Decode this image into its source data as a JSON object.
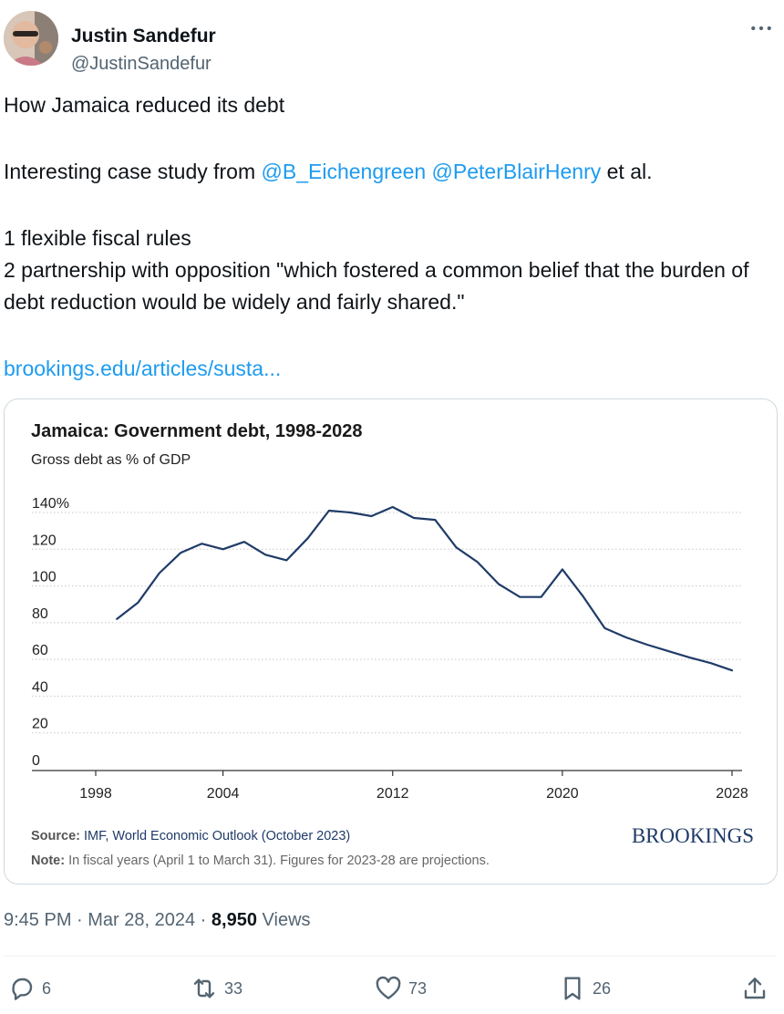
{
  "author": {
    "display_name": "Justin Sandefur",
    "handle": "@JustinSandefur"
  },
  "tweet": {
    "line1": "How Jamaica reduced its debt",
    "line2_prefix": "Interesting case study from ",
    "mention1": "@B_Eichengreen",
    "mention2": "@PeterBlairHenry",
    "line2_suffix": " et al.",
    "point1": "1 flexible fiscal rules",
    "point2": "2 partnership with opposition \"which fostered a common belief that the burden of debt reduction would be widely and fairly shared.\"",
    "link": "brookings.edu/articles/susta..."
  },
  "card": {
    "source_label": "Source:",
    "source_text": "IMF, World Economic Outlook (October 2023)",
    "note_label": "Note:",
    "note_text": "In fiscal years (April 1 to March 31). Figures for 2023-28 are projections.",
    "brand": "BROOKINGS"
  },
  "chart_data": {
    "type": "line",
    "title": "Jamaica: Government debt, 1998-2028",
    "subtitle": "Gross debt as % of GDP",
    "xlabel": "",
    "ylabel": "",
    "xlim": [
      1998,
      2028
    ],
    "ylim": [
      0,
      140
    ],
    "x_ticks": [
      "1998",
      "2004",
      "2012",
      "2020",
      "2028"
    ],
    "y_ticks": [
      "0",
      "20",
      "40",
      "60",
      "80",
      "100",
      "120",
      "140%"
    ],
    "grid": true,
    "color": "#1f3b68",
    "series": [
      {
        "x": [
          1999,
          2000,
          2001,
          2002,
          2003,
          2004,
          2005,
          2006,
          2007,
          2008,
          2009,
          2010,
          2011,
          2012,
          2013,
          2014,
          2015,
          2016,
          2017,
          2018,
          2019,
          2020,
          2021,
          2022,
          2023,
          2024,
          2025,
          2026,
          2027,
          2028
        ],
        "values": [
          82,
          91,
          107,
          118,
          123,
          120,
          124,
          117,
          114,
          126,
          141,
          140,
          138,
          143,
          137,
          136,
          121,
          113,
          101,
          94,
          94,
          109,
          94,
          77,
          72,
          68,
          64.5,
          61,
          58,
          54
        ]
      }
    ]
  },
  "footer": {
    "time": "9:45 PM",
    "dot1": " · ",
    "date": "Mar 28, 2024",
    "dot2": " · ",
    "views_count": "8,950",
    "views_label": " Views"
  },
  "actions": {
    "replies": "6",
    "reposts": "33",
    "likes": "73",
    "bookmarks": "26"
  },
  "icons": {
    "reply": "reply-icon",
    "repost": "repost-icon",
    "like": "heart-icon",
    "bookmark": "bookmark-icon",
    "share": "share-icon",
    "more": "more-icon"
  }
}
